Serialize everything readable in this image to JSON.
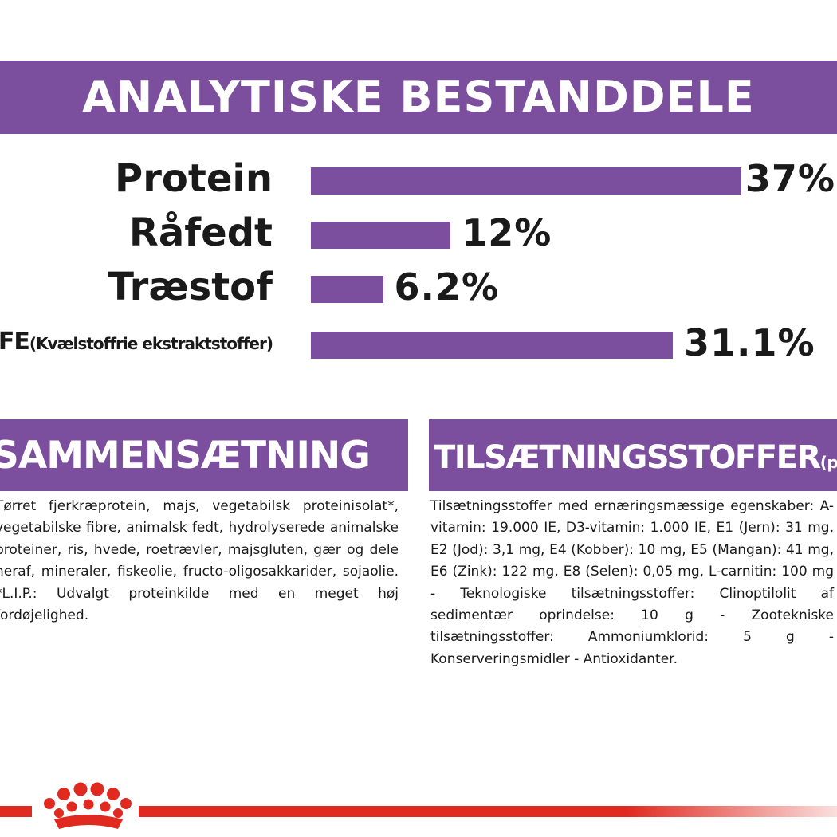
{
  "header": {
    "title": "ANALYTISKE BESTANDDELE"
  },
  "chart_data": {
    "type": "bar",
    "orientation": "horizontal",
    "categories": [
      "Protein",
      "Råfedt",
      "Træstof",
      "NFE (Kvælstoffrie ekstraktstoffer)"
    ],
    "category_labels": [
      {
        "main": "Protein",
        "sub": ""
      },
      {
        "main": "Råfedt",
        "sub": ""
      },
      {
        "main": "Træstof",
        "sub": ""
      },
      {
        "main": "NFE",
        "sub": "(Kvælstoffrie ekstraktstoffer)"
      }
    ],
    "values": [
      37,
      12,
      6.2,
      31.1
    ],
    "value_labels": [
      "37%",
      "12%",
      "6.2%",
      "31.1%"
    ],
    "unit": "%",
    "bar_color": "#7b4f9d",
    "grid": false
  },
  "sections": {
    "composition": {
      "title": "SAMMENSÆTNING",
      "text": "Tørret fjerkræprotein, majs, vegetabilsk proteinisolat*, vegetabilske fibre, animalsk fedt, hydrolyserede animalske proteiner, ris, hvede, roetrævler, majsgluten, gær og dele heraf, mineraler, fiskeolie, fructo-oligosakkarider, sojaolie. *L.I.P.: Udvalgt proteinkilde med en meget høj fordøjelighed."
    },
    "additives": {
      "title": "TILSÆTNINGSSTOFFER",
      "title_suffix": "(pr. kg)",
      "text": "Tilsætningsstoffer med ernæringsmæssige egenskaber: A-vitamin: 19.000 IE, D3-vitamin: 1.000 IE, E1 (Jern): 31 mg, E2 (Jod): 3,1 mg, E4 (Kobber): 10 mg, E5 (Mangan): 41 mg, E6 (Zink): 122 mg, E8 (Selen): 0,05 mg, L-carnitin: 100 mg - Teknologiske tilsætningsstoffer: Clinoptilolit af sedimentær oprindelse: 10 g - Zootekniske tilsætningsstoffer: Ammoniumklorid: 5 g - Konserveringsmidler - Antioxidanter."
    }
  },
  "footer": {
    "logo_icon": "crown-icon",
    "accent_color": "#e02a20"
  },
  "theme": {
    "purple": "#7b4f9d",
    "text": "#1a1a1a"
  }
}
